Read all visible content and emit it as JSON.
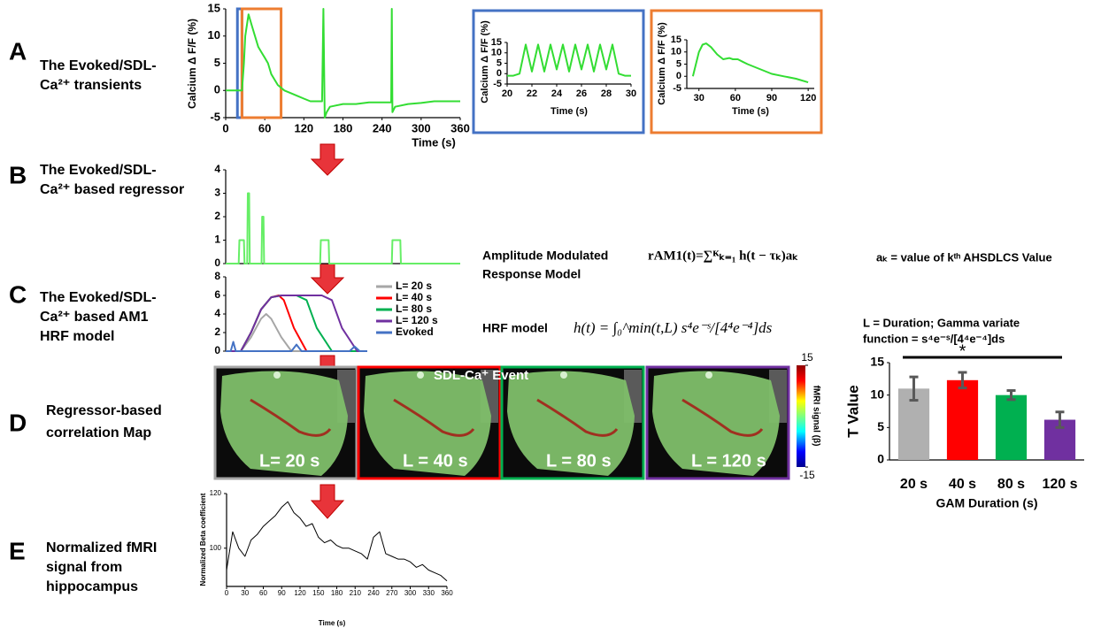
{
  "panels": [
    {
      "letter": "A",
      "description": [
        "The Evoked/SDL-",
        "Ca²⁺ transients"
      ]
    },
    {
      "letter": "B",
      "description": [
        "The Evoked/SDL-",
        "Ca²⁺ based regressor"
      ]
    },
    {
      "letter": "C",
      "description": [
        "The Evoked/SDL-",
        "Ca²⁺  based AM1",
        "HRF model"
      ]
    },
    {
      "letter": "D",
      "description": [
        "Regressor-based",
        "correlation Map"
      ]
    },
    {
      "letter": "E",
      "description": [
        "Normalized fMRI",
        "signal from",
        "hippocampus"
      ]
    }
  ],
  "model_text": {
    "am_label": [
      "Amplitude Modulated",
      "Response Model"
    ],
    "am_equation": "rAM1(t)=∑ᴷₖ₌₁ h(t − τₖ)aₖ",
    "ak_definition": "aₖ = value of kᵗʰ  AHSDLCS Value",
    "hrf_label": "HRF model",
    "hrf_equation": "h(t) = ∫₀^min(t,L) s⁴e⁻ˢ/[4⁴e⁻⁴]ds",
    "duration_note": [
      "L = Duration; Gamma variate",
      "function = s⁴e⁻ˢ/[4⁴e⁻⁴]ds"
    ]
  },
  "maps": {
    "event_label": "SDL-Ca⁺ Event",
    "panels": [
      {
        "label": "L= 20 s",
        "border": "#a6a6a6"
      },
      {
        "label": "L = 40 s",
        "border": "#ff0000"
      },
      {
        "label": "L = 80 s",
        "border": "#00b050"
      },
      {
        "label": "L = 120 s",
        "border": "#7030a0"
      }
    ],
    "colorbar": {
      "title": "fMRI signal (β)",
      "lim": [
        -15,
        15
      ],
      "ticks": [
        15,
        -15
      ]
    }
  },
  "chart_data": [
    {
      "type": "line",
      "x_label": "Time (s)",
      "y_label": "Calcium Δ F/F (%)",
      "color": "#33dd33",
      "x": [
        0,
        20,
        25,
        28,
        30,
        35,
        40,
        45,
        50,
        55,
        60,
        65,
        70,
        80,
        90,
        100,
        110,
        120,
        130,
        140,
        148,
        150,
        152,
        155,
        160,
        180,
        200,
        220,
        240,
        250,
        254,
        255,
        256,
        260,
        280,
        300,
        320,
        340,
        360
      ],
      "values": [
        0,
        0,
        0,
        5,
        10,
        14,
        12,
        10,
        8,
        7,
        6,
        5,
        3,
        1,
        0,
        -0.5,
        -1,
        -1.5,
        -2,
        -2,
        -2,
        15,
        -5,
        -4,
        -3,
        -2.5,
        -2.5,
        -2.2,
        -2.2,
        -2.2,
        -2.2,
        15,
        -4,
        -3,
        -2.5,
        -2.3,
        -2,
        -2,
        -2
      ],
      "highlights": [
        {
          "xlim": [
            18,
            25
          ],
          "color": "#4472c4"
        },
        {
          "xlim": [
            25,
            85
          ],
          "color": "#ed7d31"
        }
      ],
      "xlim": [
        0,
        360
      ],
      "xticks": [
        0,
        60,
        120,
        180,
        240,
        300,
        360
      ],
      "ylim": [
        -5,
        15
      ],
      "yticks": [
        -5,
        0,
        5,
        10,
        15
      ]
    },
    {
      "type": "line",
      "x_label": "Time (s)",
      "y_label": "Calcium Δ F/F (%)",
      "color": "#33dd33",
      "frame_color": "#4472c4",
      "x": [
        20,
        20.5,
        21,
        21.5,
        22,
        22.5,
        23,
        23.5,
        24,
        24.5,
        25,
        25.5,
        26,
        26.5,
        27,
        27.5,
        28,
        28.5,
        29,
        29.5,
        30
      ],
      "values": [
        -1,
        -1,
        0,
        14,
        1,
        14,
        1,
        14,
        2,
        14,
        1,
        14,
        2,
        14,
        1,
        14,
        2,
        14,
        0,
        -1,
        -1
      ],
      "xlim": [
        20,
        30
      ],
      "xticks": [
        20,
        22,
        24,
        26,
        28,
        30
      ],
      "ylim": [
        -5,
        15
      ],
      "yticks": [
        -5,
        0,
        5,
        10,
        15
      ]
    },
    {
      "type": "line",
      "x_label": "Time (s)",
      "y_label": "Calcium Δ F/F (%)",
      "color": "#33dd33",
      "frame_color": "#ed7d31",
      "x": [
        25,
        30,
        33,
        36,
        40,
        45,
        50,
        55,
        58,
        62,
        66,
        70,
        80,
        90,
        100,
        110,
        120
      ],
      "values": [
        0,
        10,
        13,
        13.5,
        12,
        9,
        7,
        7.5,
        7,
        7,
        6,
        5,
        3,
        1,
        0,
        -1,
        -2.5
      ],
      "xlim": [
        20,
        125
      ],
      "xticks": [
        30,
        60,
        90,
        120
      ],
      "ylim": [
        -5,
        15
      ],
      "yticks": [
        -5,
        0,
        5,
        10,
        15
      ]
    },
    {
      "type": "line",
      "color": "#66ee66",
      "x": [
        0,
        20,
        21,
        28,
        29,
        33,
        34,
        36,
        37,
        55,
        56,
        58,
        59,
        145,
        146,
        158,
        159,
        255,
        256,
        268,
        269,
        360
      ],
      "values": [
        0,
        0,
        1,
        1,
        0,
        0,
        3,
        3,
        0,
        0,
        2,
        2,
        0,
        0,
        1,
        1,
        0,
        0,
        1,
        1,
        0,
        0
      ],
      "xlim": [
        0,
        360
      ],
      "ylim": [
        0,
        4
      ],
      "yticks": [
        0,
        1,
        2,
        3,
        4
      ]
    },
    {
      "type": "line",
      "series": [
        {
          "name": "L= 20 s",
          "color": "#a6a6a6",
          "x": [
            0,
            30,
            50,
            70,
            80,
            90,
            110,
            130,
            280
          ],
          "values": [
            0,
            0,
            1.5,
            3.5,
            4,
            3.5,
            1.5,
            0,
            0
          ]
        },
        {
          "name": "L= 40 s",
          "color": "#ff0000",
          "x": [
            0,
            30,
            50,
            70,
            90,
            105,
            115,
            135,
            160,
            280
          ],
          "values": [
            0,
            0,
            2,
            4.5,
            5.8,
            6,
            5.5,
            2.5,
            0,
            0
          ]
        },
        {
          "name": "L= 80 s",
          "color": "#00b050",
          "x": [
            0,
            30,
            50,
            70,
            90,
            110,
            140,
            160,
            180,
            210,
            280
          ],
          "values": [
            0,
            0,
            2,
            4.5,
            5.8,
            6,
            6,
            5.5,
            2.5,
            0,
            0
          ]
        },
        {
          "name": "L= 120 s",
          "color": "#7030a0",
          "x": [
            0,
            30,
            50,
            70,
            90,
            110,
            190,
            210,
            230,
            260,
            280
          ],
          "values": [
            0,
            0,
            2,
            4.5,
            5.8,
            6,
            6,
            5.5,
            2.5,
            0,
            0
          ]
        },
        {
          "name": "Evoked",
          "color": "#4472c4",
          "x": [
            0,
            10,
            15,
            20,
            130,
            140,
            150,
            245,
            255,
            265,
            280
          ],
          "values": [
            0,
            0,
            1,
            0,
            0,
            0.7,
            0,
            0,
            0.5,
            0,
            0
          ]
        }
      ],
      "xlim": [
        0,
        280
      ],
      "ylim": [
        0,
        8
      ],
      "yticks": [
        0,
        2,
        4,
        6,
        8
      ]
    },
    {
      "type": "bar",
      "x_label": "GAM Duration (s)",
      "y_label": "T Value",
      "annotation": "*",
      "categories": [
        "20 s",
        "40 s",
        "80 s",
        "120 s"
      ],
      "values": [
        11,
        12.3,
        10,
        6.2
      ],
      "errors": [
        1.8,
        1.2,
        0.7,
        1.2
      ],
      "colors": [
        "#b0b0b0",
        "#ff0000",
        "#00b050",
        "#7030a0"
      ],
      "error_color": "#595959",
      "ylim": [
        0,
        15
      ],
      "yticks": [
        0,
        5,
        10,
        15
      ]
    },
    {
      "type": "line",
      "x_label": "Time (s)",
      "y_label": "Normalized Beta coefficient",
      "color": "#000000",
      "x": [
        0,
        10,
        20,
        30,
        40,
        50,
        60,
        70,
        80,
        90,
        100,
        110,
        120,
        130,
        140,
        150,
        160,
        170,
        180,
        190,
        200,
        210,
        220,
        230,
        240,
        250,
        260,
        270,
        280,
        290,
        300,
        310,
        320,
        330,
        340,
        350,
        360
      ],
      "values": [
        92,
        106,
        100,
        97,
        103,
        105,
        108,
        110,
        112,
        115,
        117,
        113,
        111,
        108,
        109,
        104,
        102,
        103,
        101,
        100,
        100,
        99,
        98,
        96,
        104,
        106,
        98,
        97,
        96,
        96,
        95,
        93,
        94,
        92,
        91,
        90,
        88
      ],
      "xlim": [
        0,
        360
      ],
      "xticks": [
        0,
        30,
        60,
        90,
        120,
        150,
        180,
        210,
        240,
        270,
        300,
        330,
        360
      ],
      "ylim": [
        86,
        120
      ],
      "yticks": [
        100,
        120
      ]
    }
  ]
}
